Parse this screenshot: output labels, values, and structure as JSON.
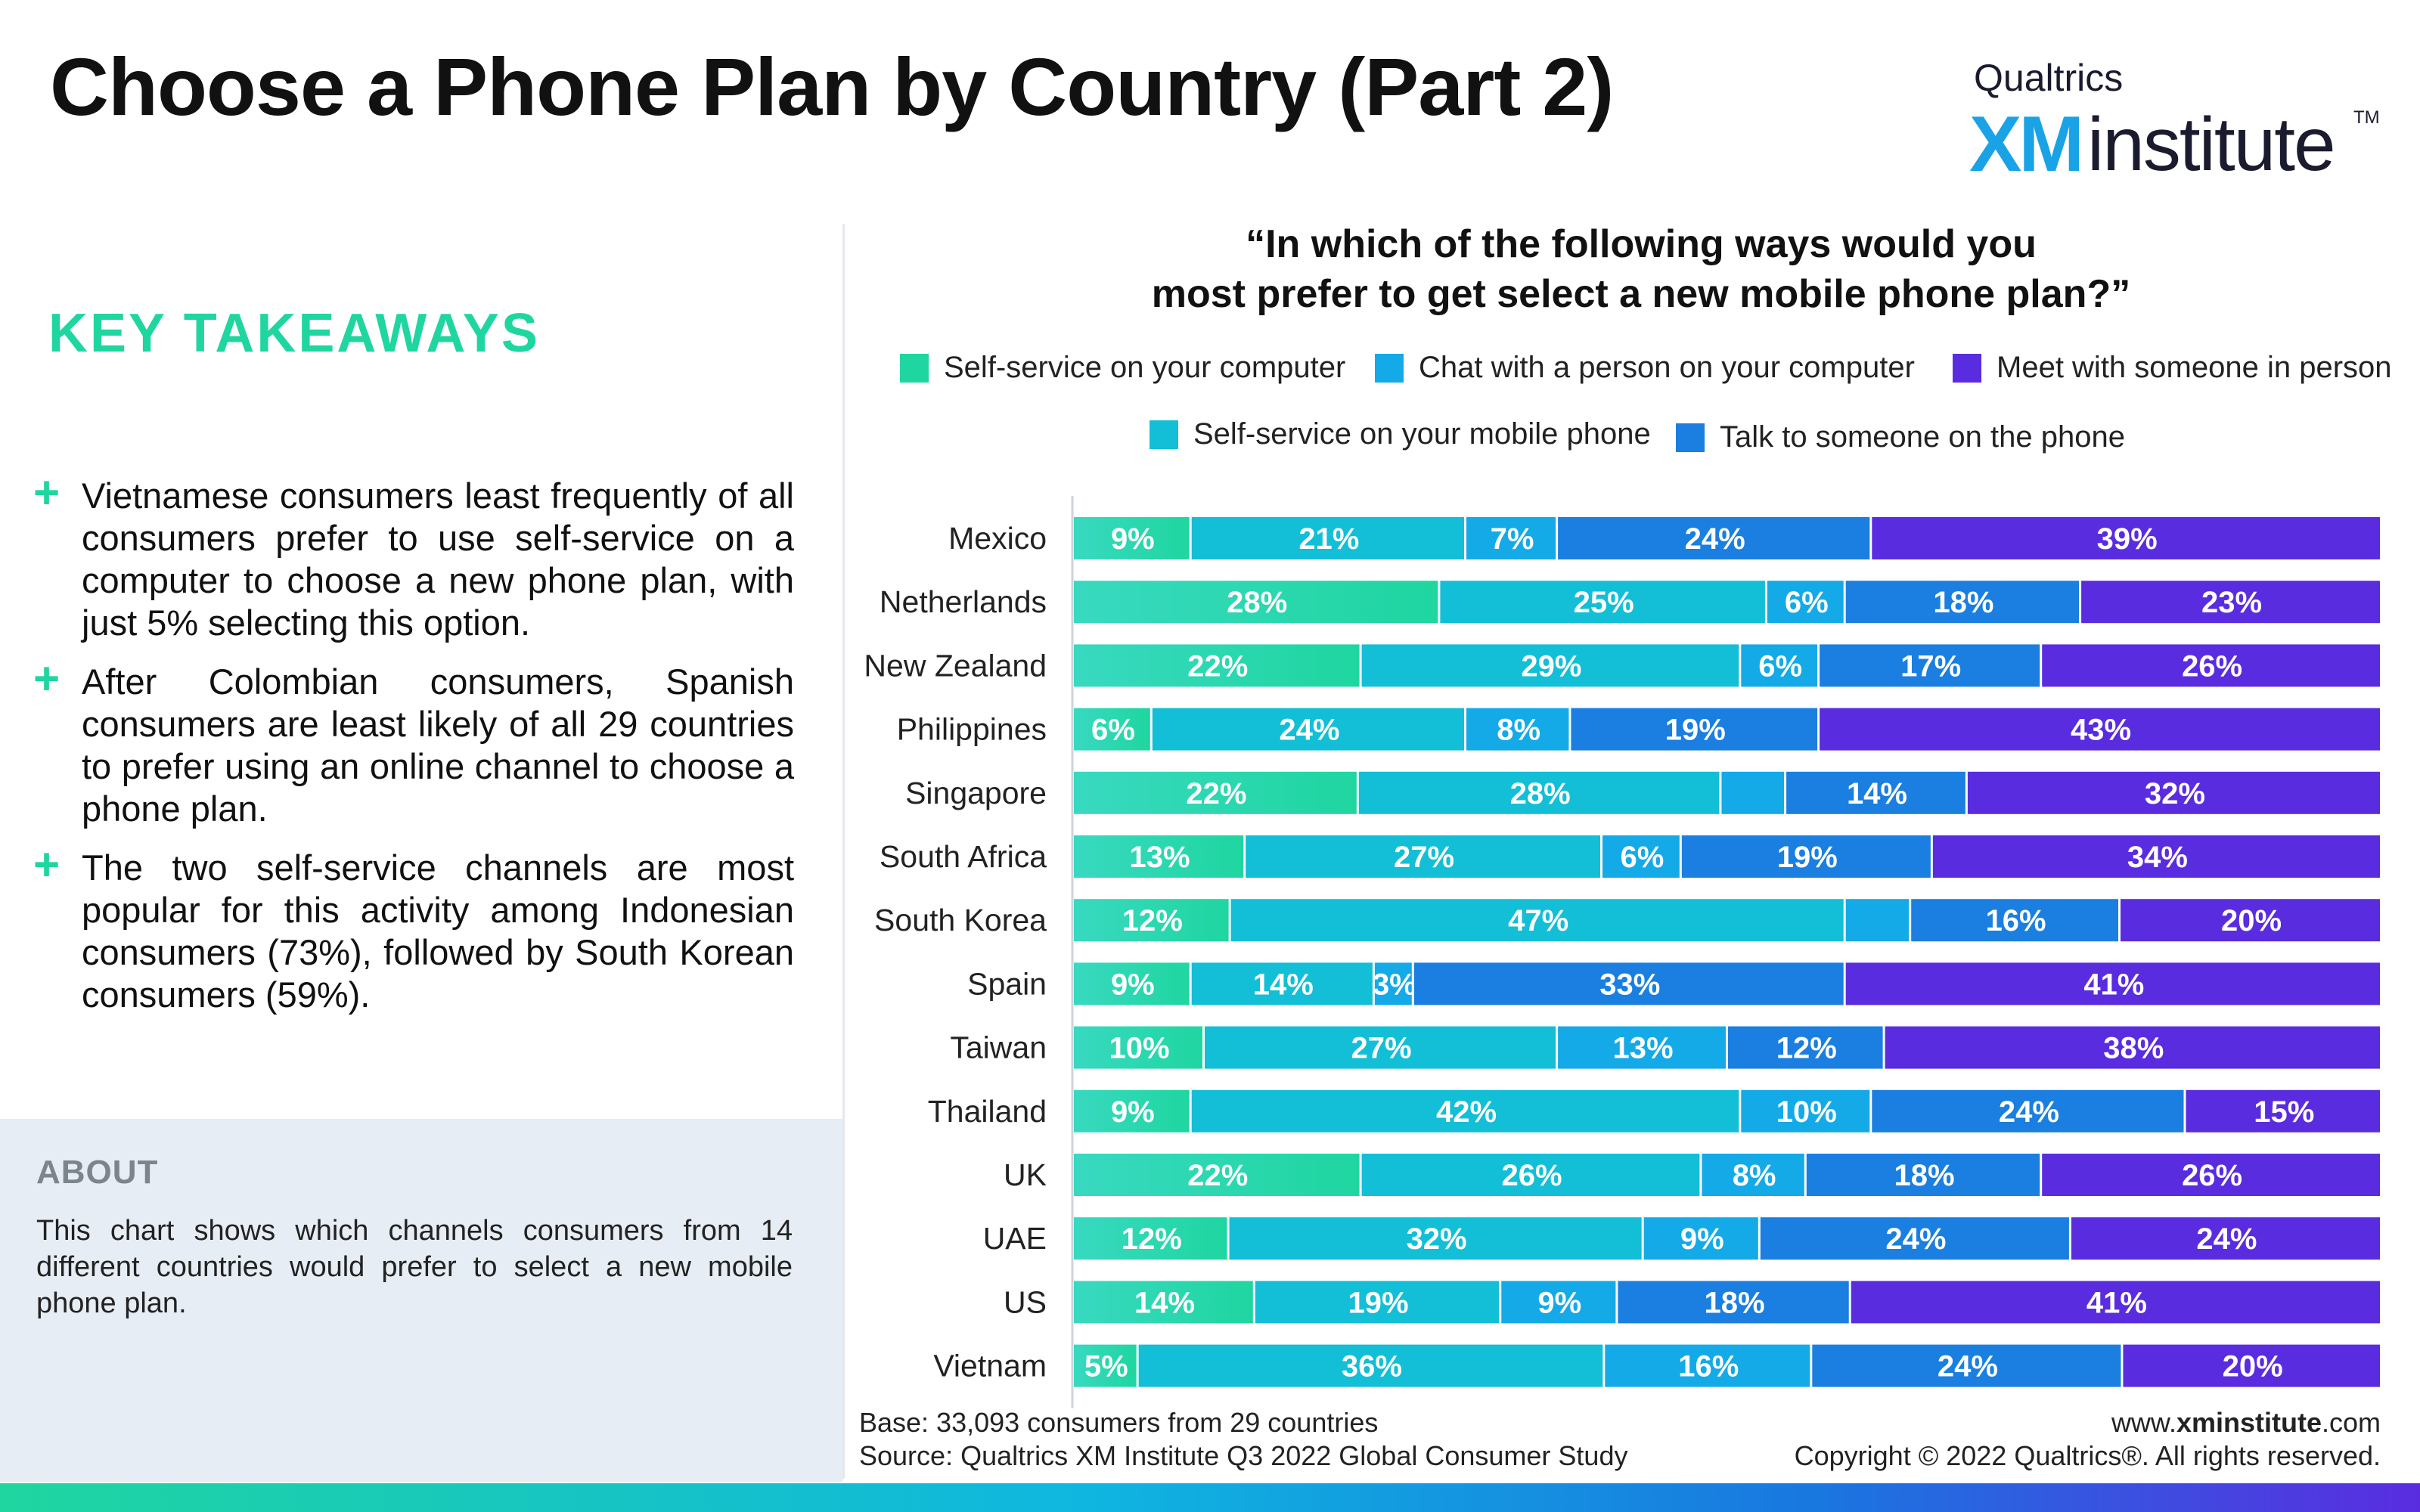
{
  "title": "Choose a Phone Plan by Country (Part 2)",
  "logo": {
    "top": "Qualtrics",
    "xm": "XM",
    "institute": "institute",
    "tm": "TM"
  },
  "key_takeaways": {
    "heading": "KEY TAKEAWAYS",
    "items": [
      "Vietnamese consumers least frequently of all consumers prefer to use self-service on a computer to choose a new phone plan, with just 5% selecting this option.",
      "After Colombian consumers, Spanish consumers are least likely of all 29 countries to prefer using an online channel to choose a phone plan.",
      "The two self-service channels are most popular for this activity among Indonesian consumers (73%), followed by South Korean consumers (59%)."
    ]
  },
  "about": {
    "title": "ABOUT",
    "text": "This chart shows which channels consumers from 14 different countries would prefer to select a new mobile phone plan."
  },
  "footer": {
    "base": "Base: 33,093 consumers from 29 countries",
    "source": "Source: Qualtrics XM Institute Q3 2022 Global Consumer Study",
    "website_prefix": "www.",
    "website_bold": "xminstitute",
    "website_suffix": ".com",
    "copyright": "Copyright © 2022 Qualtrics®. All rights reserved."
  },
  "colors": {
    "self_service_computer": "#1fd6a0",
    "self_service_mobile": "#12bfd6",
    "chat_computer": "#14aae8",
    "talk_phone": "#1a7fe0",
    "meet_in_person": "#5a2ce0",
    "accent_green": "#1fd6a0"
  },
  "chart_data": {
    "type": "bar",
    "orientation": "horizontal",
    "stacked": true,
    "title": "“In which of the following ways would you most prefer to get select a new mobile phone plan?”",
    "title_lines": [
      "“In which of the following ways would you",
      "most prefer to get select a new mobile phone plan?”"
    ],
    "legend": [
      {
        "label": "Self-service on your computer",
        "color": "#1fd6a0"
      },
      {
        "label": "Chat with a person on your computer",
        "color": "#14aae8"
      },
      {
        "label": "Meet with someone in person",
        "color": "#5a2ce0"
      },
      {
        "label": "Self-service on your mobile phone",
        "color": "#12bfd6"
      },
      {
        "label": "Talk to someone on the phone",
        "color": "#1a7fe0"
      }
    ],
    "categories": [
      "Mexico",
      "Netherlands",
      "New Zealand",
      "Philippines",
      "Singapore",
      "South Africa",
      "South Korea",
      "Spain",
      "Taiwan",
      "Thailand",
      "UK",
      "UAE",
      "US",
      "Vietnam"
    ],
    "series": [
      {
        "name": "Self-service on your computer",
        "values": [
          9,
          28,
          22,
          6,
          22,
          13,
          12,
          9,
          10,
          9,
          22,
          12,
          14,
          5
        ],
        "labels": [
          "9%",
          "28%",
          "22%",
          "6%",
          "22%",
          "13%",
          "12%",
          "9%",
          "10%",
          "9%",
          "22%",
          "12%",
          "14%",
          "5%"
        ]
      },
      {
        "name": "Self-service on your mobile phone",
        "values": [
          21,
          25,
          29,
          24,
          28,
          27,
          47,
          14,
          27,
          42,
          26,
          32,
          19,
          36
        ],
        "labels": [
          "21%",
          "25%",
          "29%",
          "24%",
          "28%",
          "27%",
          "47%",
          "14%",
          "27%",
          "42%",
          "26%",
          "32%",
          "19%",
          "36%"
        ]
      },
      {
        "name": "Chat with a person on your computer",
        "values": [
          7,
          6,
          6,
          8,
          5,
          6,
          5,
          3,
          13,
          10,
          8,
          9,
          9,
          16
        ],
        "labels": [
          "7%",
          "6%",
          "6%",
          "8%",
          "",
          "6%",
          "",
          "3%",
          "13%",
          "10%",
          "8%",
          "9%",
          "9%",
          "16%"
        ]
      },
      {
        "name": "Talk to someone on the phone",
        "values": [
          24,
          18,
          17,
          19,
          14,
          19,
          16,
          33,
          12,
          24,
          18,
          24,
          18,
          24
        ],
        "labels": [
          "24%",
          "18%",
          "17%",
          "19%",
          "14%",
          "19%",
          "16%",
          "33%",
          "12%",
          "24%",
          "18%",
          "24%",
          "18%",
          "24%"
        ]
      },
      {
        "name": "Meet with someone in person",
        "values": [
          39,
          23,
          26,
          43,
          32,
          34,
          20,
          41,
          38,
          15,
          26,
          24,
          41,
          20
        ],
        "labels": [
          "39%",
          "23%",
          "26%",
          "43%",
          "32%",
          "34%",
          "20%",
          "41%",
          "38%",
          "15%",
          "26%",
          "24%",
          "41%",
          "20%"
        ]
      }
    ]
  }
}
